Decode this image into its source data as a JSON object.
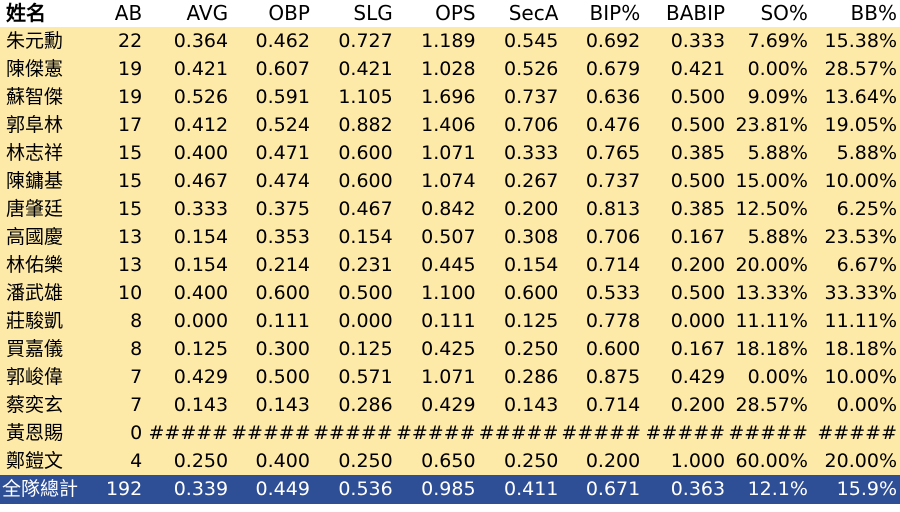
{
  "table": {
    "headers": [
      "姓名",
      "AB",
      "AVG",
      "OBP",
      "SLG",
      "OPS",
      "SecA",
      "BIP%",
      "BABIP",
      "SO%",
      "BB%"
    ],
    "rows": [
      [
        "朱元勳",
        "22",
        "0.364",
        "0.462",
        "0.727",
        "1.189",
        "0.545",
        "0.692",
        "0.333",
        "7.69%",
        "15.38%"
      ],
      [
        "陳傑憲",
        "19",
        "0.421",
        "0.607",
        "0.421",
        "1.028",
        "0.526",
        "0.679",
        "0.421",
        "0.00%",
        "28.57%"
      ],
      [
        "蘇智傑",
        "19",
        "0.526",
        "0.591",
        "1.105",
        "1.696",
        "0.737",
        "0.636",
        "0.500",
        "9.09%",
        "13.64%"
      ],
      [
        "郭阜林",
        "17",
        "0.412",
        "0.524",
        "0.882",
        "1.406",
        "0.706",
        "0.476",
        "0.500",
        "23.81%",
        "19.05%"
      ],
      [
        "林志祥",
        "15",
        "0.400",
        "0.471",
        "0.600",
        "1.071",
        "0.333",
        "0.765",
        "0.385",
        "5.88%",
        "5.88%"
      ],
      [
        "陳鏞基",
        "15",
        "0.467",
        "0.474",
        "0.600",
        "1.074",
        "0.267",
        "0.737",
        "0.500",
        "15.00%",
        "10.00%"
      ],
      [
        "唐肇廷",
        "15",
        "0.333",
        "0.375",
        "0.467",
        "0.842",
        "0.200",
        "0.813",
        "0.385",
        "12.50%",
        "6.25%"
      ],
      [
        "高國慶",
        "13",
        "0.154",
        "0.353",
        "0.154",
        "0.507",
        "0.308",
        "0.706",
        "0.167",
        "5.88%",
        "23.53%"
      ],
      [
        "林佑樂",
        "13",
        "0.154",
        "0.214",
        "0.231",
        "0.445",
        "0.154",
        "0.714",
        "0.200",
        "20.00%",
        "6.67%"
      ],
      [
        "潘武雄",
        "10",
        "0.400",
        "0.600",
        "0.500",
        "1.100",
        "0.600",
        "0.533",
        "0.500",
        "13.33%",
        "33.33%"
      ],
      [
        "莊駿凱",
        "8",
        "0.000",
        "0.111",
        "0.000",
        "0.111",
        "0.125",
        "0.778",
        "0.000",
        "11.11%",
        "11.11%"
      ],
      [
        "買嘉儀",
        "8",
        "0.125",
        "0.300",
        "0.125",
        "0.425",
        "0.250",
        "0.600",
        "0.167",
        "18.18%",
        "18.18%"
      ],
      [
        "郭峻偉",
        "7",
        "0.429",
        "0.500",
        "0.571",
        "1.071",
        "0.286",
        "0.875",
        "0.429",
        "0.00%",
        "10.00%"
      ],
      [
        "蔡奕玄",
        "7",
        "0.143",
        "0.143",
        "0.286",
        "0.429",
        "0.143",
        "0.714",
        "0.200",
        "28.57%",
        "0.00%"
      ],
      [
        "黃恩賜",
        "0",
        "#####",
        "#####",
        "#####",
        "#####",
        "#####",
        "#####",
        "#####",
        "#####",
        "#####"
      ],
      [
        "鄭鎧文",
        "4",
        "0.250",
        "0.400",
        "0.250",
        "0.650",
        "0.250",
        "0.200",
        "1.000",
        "60.00%",
        "20.00%"
      ]
    ],
    "total": [
      "全隊總計",
      "192",
      "0.339",
      "0.449",
      "0.536",
      "0.985",
      "0.411",
      "0.671",
      "0.363",
      "12.1%",
      "15.9%"
    ]
  },
  "colors": {
    "row_background": "#fde9a8",
    "total_background": "#2e4e96",
    "total_text": "#ffffff"
  }
}
